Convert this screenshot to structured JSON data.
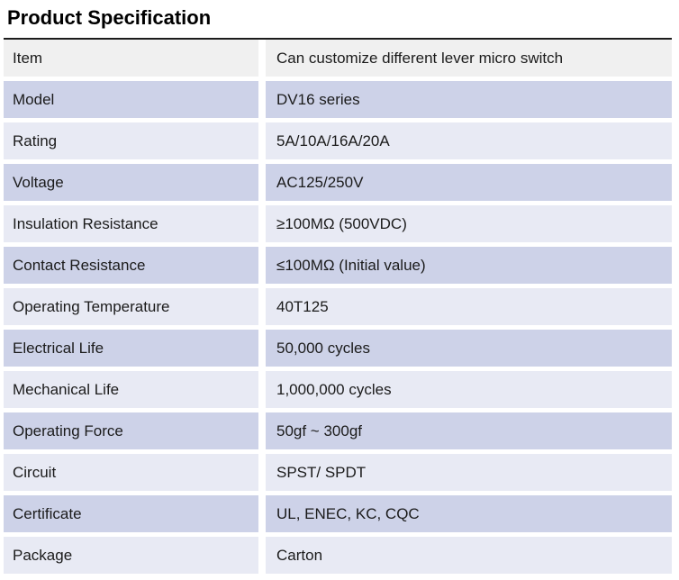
{
  "page": {
    "title": "Product Specification"
  },
  "table": {
    "rows": [
      {
        "label": "Item",
        "value": "Can customize different lever micro switch"
      },
      {
        "label": "Model",
        "value": "DV16 series"
      },
      {
        "label": "Rating",
        "value": "5A/10A/16A/20A"
      },
      {
        "label": "Voltage",
        "value": "AC125/250V"
      },
      {
        "label": "Insulation Resistance",
        "value": "≥100MΩ (500VDC)"
      },
      {
        "label": "Contact Resistance",
        "value": "≤100MΩ (Initial value)"
      },
      {
        "label": "Operating Temperature",
        "value": "40T125"
      },
      {
        "label": "Electrical Life",
        "value": "50,000 cycles"
      },
      {
        "label": "Mechanical Life",
        "value": "1,000,000 cycles"
      },
      {
        "label": "Operating Force",
        "value": "50gf ~ 300gf"
      },
      {
        "label": "Circuit",
        "value": "SPST/ SPDT"
      },
      {
        "label": "Certificate",
        "value": "UL, ENEC, KC, CQC"
      },
      {
        "label": "Package",
        "value": "Carton"
      }
    ]
  },
  "colors": {
    "header_row_bg": "#f0f0f0",
    "row_dark": "#cdd2e8",
    "row_light": "#e8eaf4",
    "top_border": "#1c1c1c",
    "text": "#1b1b1b"
  }
}
